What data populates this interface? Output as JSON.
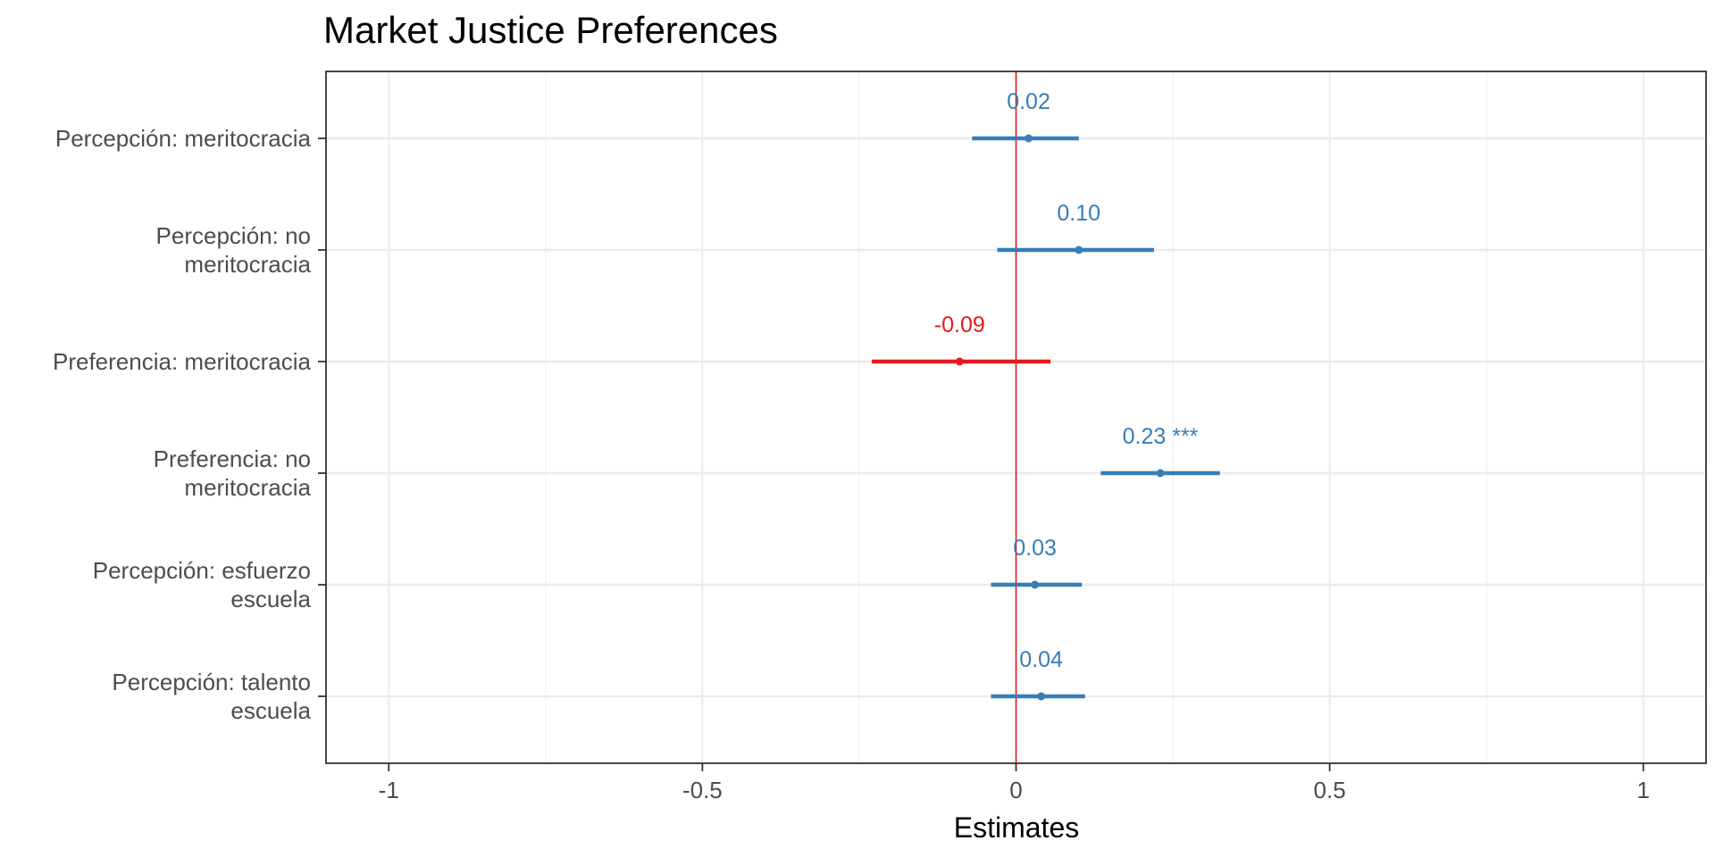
{
  "chart_data": {
    "type": "forest",
    "title": "Market Justice Preferences",
    "xlabel": "Estimates",
    "ylabel": "",
    "xlim": [
      -1.1,
      1.1
    ],
    "x_ticks": [
      -1,
      -0.5,
      0,
      0.5,
      1
    ],
    "x_tick_labels": [
      "-1",
      "-0.5",
      "0",
      "0.5",
      "1"
    ],
    "reference_line": 0,
    "grid": true,
    "colors": {
      "positive": "#377EB8",
      "negative": "#E41A1C",
      "reference": "#E41A1C"
    },
    "terms": [
      {
        "label": [
          "Percepción: meritocracia"
        ],
        "estimate": 0.02,
        "ci": [
          -0.07,
          0.1
        ],
        "text": "0.02",
        "sign": "positive"
      },
      {
        "label": [
          "Percepción: no",
          "meritocracia"
        ],
        "estimate": 0.1,
        "ci": [
          -0.03,
          0.22
        ],
        "text": "0.10",
        "sign": "positive"
      },
      {
        "label": [
          "Preferencia: meritocracia"
        ],
        "estimate": -0.09,
        "ci": [
          -0.23,
          0.055
        ],
        "text": "-0.09",
        "sign": "negative"
      },
      {
        "label": [
          "Preferencia: no",
          "meritocracia"
        ],
        "estimate": 0.23,
        "ci": [
          0.135,
          0.325
        ],
        "text": "0.23 ***",
        "sign": "positive"
      },
      {
        "label": [
          "Percepción: esfuerzo",
          "escuela"
        ],
        "estimate": 0.03,
        "ci": [
          -0.04,
          0.105
        ],
        "text": "0.03",
        "sign": "positive"
      },
      {
        "label": [
          "Percepción: talento",
          "escuela"
        ],
        "estimate": 0.04,
        "ci": [
          -0.04,
          0.11
        ],
        "text": "0.04",
        "sign": "positive"
      }
    ]
  }
}
